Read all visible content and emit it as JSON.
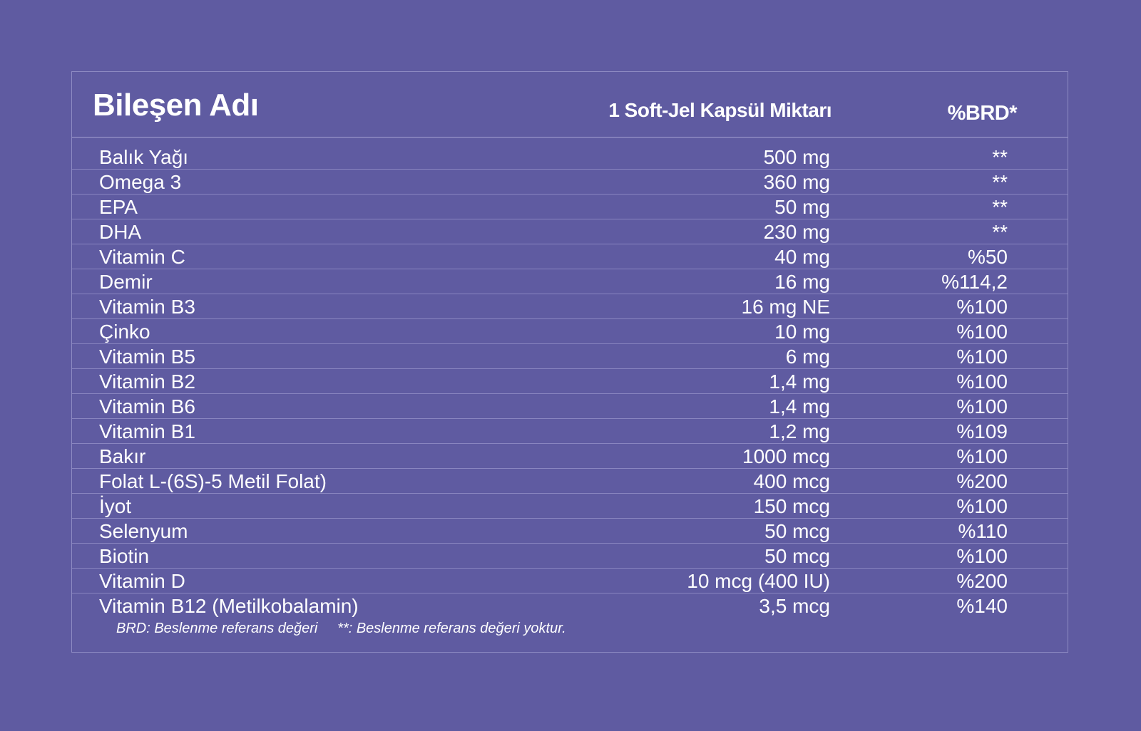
{
  "header": {
    "name": "Bileşen Adı",
    "amount": "1 Soft-Jel Kapsül Miktarı",
    "brd": "%BRD*"
  },
  "rows": [
    {
      "name": "Balık Yağı",
      "amount": "500 mg",
      "brd": "**"
    },
    {
      "name": "Omega 3",
      "amount": "360  mg",
      "brd": "**"
    },
    {
      "name": "EPA",
      "amount": "50 mg",
      "brd": "**"
    },
    {
      "name": "DHA",
      "amount": "230 mg",
      "brd": "**"
    },
    {
      "name": "Vitamin C",
      "amount": "40 mg",
      "brd": "%50"
    },
    {
      "name": "Demir",
      "amount": "16 mg",
      "brd": "%114,2"
    },
    {
      "name": "Vitamin B3",
      "amount": "16 mg NE",
      "brd": "%100"
    },
    {
      "name": "Çinko",
      "amount": "10 mg",
      "brd": "%100"
    },
    {
      "name": "Vitamin B5",
      "amount": "6 mg",
      "brd": "%100"
    },
    {
      "name": "Vitamin B2",
      "amount": "1,4 mg",
      "brd": "%100"
    },
    {
      "name": "Vitamin B6",
      "amount": "1,4 mg",
      "brd": "%100"
    },
    {
      "name": "Vitamin B1",
      "amount": "1,2 mg",
      "brd": "%109"
    },
    {
      "name": "Bakır",
      "amount": "1000 mcg",
      "brd": "%100"
    },
    {
      "name": "Folat L-(6S)-5 Metil Folat)",
      "amount": "400 mcg",
      "brd": "%200"
    },
    {
      "name": "İyot",
      "amount": "150 mcg",
      "brd": "%100"
    },
    {
      "name": "Selenyum",
      "amount": "50 mcg",
      "brd": "%110"
    },
    {
      "name": "Biotin",
      "amount": "50 mcg",
      "brd": "%100"
    },
    {
      "name": "Vitamin D",
      "amount": "10 mcg (400 IU)",
      "brd": "%200"
    },
    {
      "name": "Vitamin B12 (Metilkobalamin)",
      "amount": "3,5 mcg",
      "brd": "%140"
    }
  ],
  "footnote": "BRD: Beslenme referans değeri     **: Beslenme referans değeri yoktur."
}
